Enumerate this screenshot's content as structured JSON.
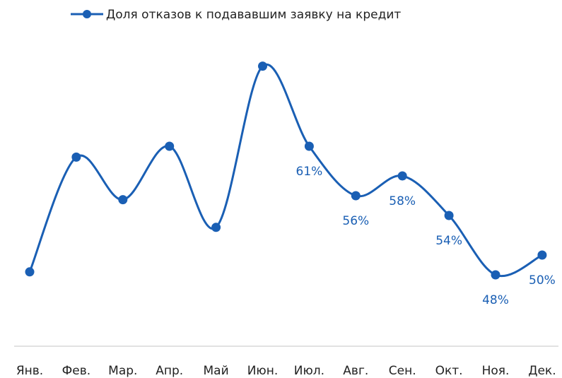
{
  "chart_data": {
    "type": "line",
    "categories": [
      "Янв.",
      "Фев.",
      "Мар.",
      "Апр.",
      "Май",
      "Июн.",
      "Июл.",
      "Авг.",
      "Сен.",
      "Окт.",
      "Ноя.",
      "Дек."
    ],
    "series": [
      {
        "name": "Доля отказов к подававшим заявку на кредит",
        "color": "#1a5fb4",
        "values": [
          48.3,
          59.9,
          55.6,
          61,
          52.8,
          69.1,
          61,
          56,
          58,
          54,
          48,
          50
        ],
        "value_labels": [
          null,
          null,
          null,
          null,
          null,
          null,
          "61%",
          "56%",
          "58%",
          "54%",
          "48%",
          "50%"
        ]
      }
    ],
    "ylim": [
      41,
      75
    ],
    "legend": "top",
    "grid": false
  }
}
